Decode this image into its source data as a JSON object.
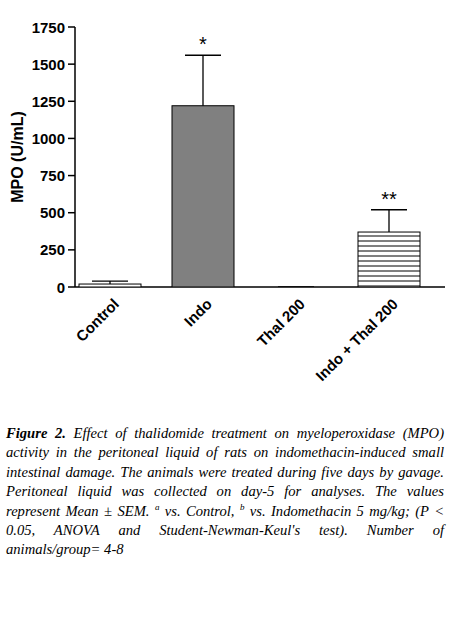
{
  "chart_data": {
    "type": "bar",
    "y_label": "MPO (U/mL)",
    "categories": [
      "Control",
      "Indo",
      "Thal 200",
      "Indo + Thal 200"
    ],
    "values": [
      20,
      1220,
      0,
      370
    ],
    "errors": [
      20,
      340,
      0,
      150
    ],
    "colors": [
      "#ffffff",
      "#808080",
      "#ffffff",
      "#ffffff"
    ],
    "ylim": [
      0,
      1750
    ],
    "yticks": [
      0,
      250,
      500,
      750,
      1000,
      1250,
      1500,
      1750
    ],
    "grid": false,
    "annotations": [
      {
        "text": "*",
        "x": "Indo"
      },
      {
        "text": "**",
        "x": "Indo + Thal 200"
      }
    ]
  },
  "caption": {
    "label": "Figure 2.",
    "parts": [
      "Effect of thalidomide treatment on myeloperoxidase (MPO) activity in the peritoneal liquid of rats on indomethacin-induced small intestinal damage. The animals were treated during five days by gavage. Peritoneal liquid was collected on day-5 for analyses. The values represent Mean ± SEM. ",
      "a",
      " vs. Control, ",
      "b",
      " vs. Indomethacin 5 mg/kg; (P < 0.05, ANOVA and Student-Newman-Keul's test). Number of animals/group= 4-8"
    ]
  }
}
